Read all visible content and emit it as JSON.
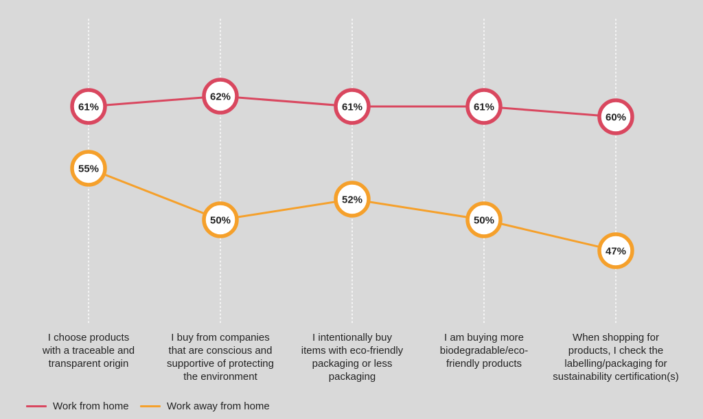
{
  "chart_data": {
    "type": "line",
    "categories": [
      "I choose products with a traceable and transparent origin",
      "I buy from companies that are conscious and supportive of protecting the environment",
      "I intentionally buy items with eco-friendly packaging or less packaging",
      "I am buying more biodegradable/eco-friendly products",
      "When shopping for products, I check the labelling/packaging for sustainability certification(s)"
    ],
    "category_lines": [
      [
        "I choose products",
        "with a traceable and",
        "transparent origin"
      ],
      [
        "I buy from companies",
        "that are conscious and",
        "supportive of protecting",
        "the environment"
      ],
      [
        "I intentionally buy",
        "items with eco-friendly",
        "packaging or less",
        "packaging"
      ],
      [
        "I am buying more",
        "biodegradable/eco-",
        "friendly products"
      ],
      [
        "When shopping for",
        "products, I check the",
        "labelling/packaging for",
        "sustainability certification(s)"
      ]
    ],
    "series": [
      {
        "name": "Work from home",
        "color": "#d9475f",
        "values": [
          61,
          62,
          61,
          61,
          60
        ],
        "labels": [
          "61%",
          "62%",
          "61%",
          "61%",
          "60%"
        ]
      },
      {
        "name": "Work away from home",
        "color": "#f5a02b",
        "values": [
          55,
          50,
          52,
          50,
          47
        ],
        "labels": [
          "55%",
          "50%",
          "52%",
          "50%",
          "47%"
        ]
      }
    ],
    "value_unit": "%",
    "grid": "vertical dotted lines per category",
    "legend_position": "bottom-left"
  }
}
